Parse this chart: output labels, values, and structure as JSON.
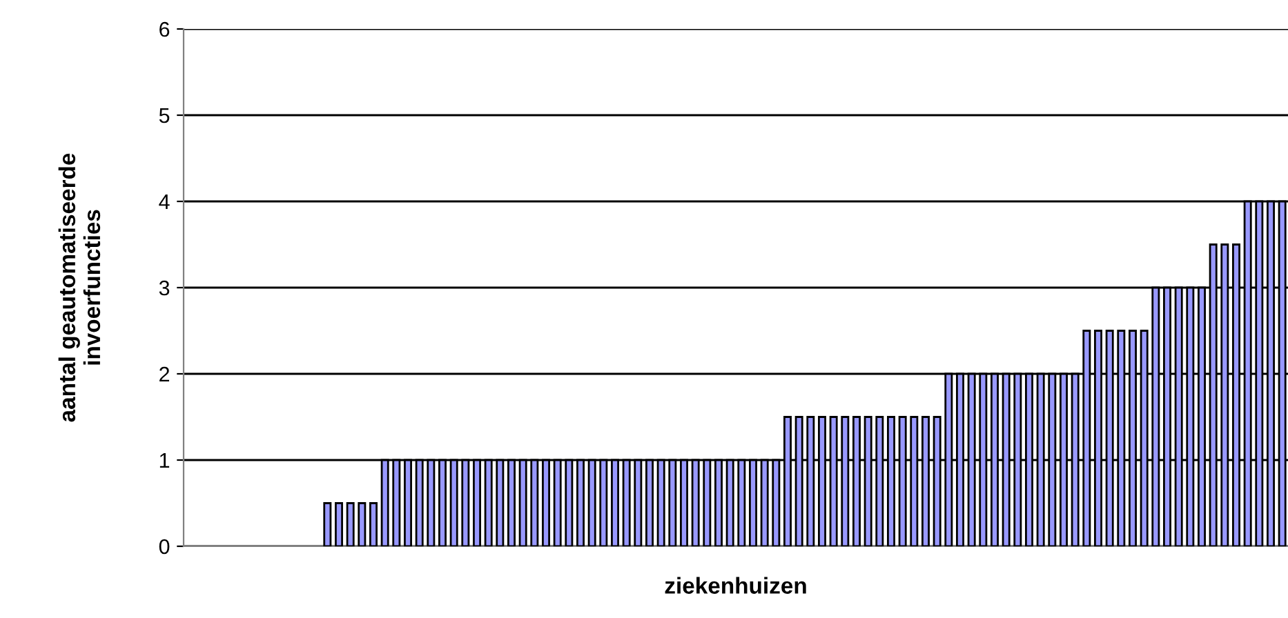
{
  "chart_data": {
    "type": "bar",
    "xlabel": "ziekenhuizen",
    "ylabel": "aantal geautomatiseerde\ninvoerfuncties",
    "categories": [
      null,
      null,
      null,
      null,
      null,
      null,
      null,
      null,
      null,
      null,
      null,
      null,
      null,
      null,
      null,
      null,
      null,
      null,
      null,
      null,
      null,
      null,
      null,
      null,
      null,
      null,
      null,
      null,
      null,
      null,
      null,
      null,
      null,
      null,
      null,
      null,
      null,
      null,
      null,
      null,
      null,
      null,
      null,
      null,
      null,
      null,
      null,
      null,
      null,
      null,
      null,
      null,
      null,
      null,
      null,
      null,
      null,
      null,
      null,
      null,
      null,
      null,
      null,
      null,
      null,
      null,
      null,
      null,
      null,
      null,
      null,
      null,
      null,
      null,
      null,
      null,
      null,
      null,
      null,
      null,
      null,
      null,
      null,
      null,
      null,
      null,
      null,
      null,
      null,
      null,
      null,
      null,
      null,
      null,
      null,
      null
    ],
    "values": [
      null,
      null,
      null,
      null,
      null,
      null,
      null,
      null,
      null,
      null,
      null,
      null,
      0.5,
      0.5,
      0.5,
      0.5,
      0.5,
      1,
      1,
      1,
      1,
      1,
      1,
      1,
      1,
      1,
      1,
      1,
      1,
      1,
      1,
      1,
      1,
      1,
      1,
      1,
      1,
      1,
      1,
      1,
      1,
      1,
      1,
      1,
      1,
      1,
      1,
      1,
      1,
      1,
      1,
      1,
      1.5,
      1.5,
      1.5,
      1.5,
      1.5,
      1.5,
      1.5,
      1.5,
      1.5,
      1.5,
      1.5,
      1.5,
      1.5,
      1.5,
      2,
      2,
      2,
      2,
      2,
      2,
      2,
      2,
      2,
      2,
      2,
      2,
      2.5,
      2.5,
      2.5,
      2.5,
      2.5,
      2.5,
      3,
      3,
      3,
      3,
      3,
      3.5,
      3.5,
      3.5,
      4,
      4,
      4,
      4
    ],
    "color": "#9999ff",
    "ylim": [
      0,
      6
    ],
    "yticks": [
      0,
      1,
      2,
      3,
      4,
      5,
      6
    ],
    "grid": "y",
    "tick_labels": "y"
  }
}
